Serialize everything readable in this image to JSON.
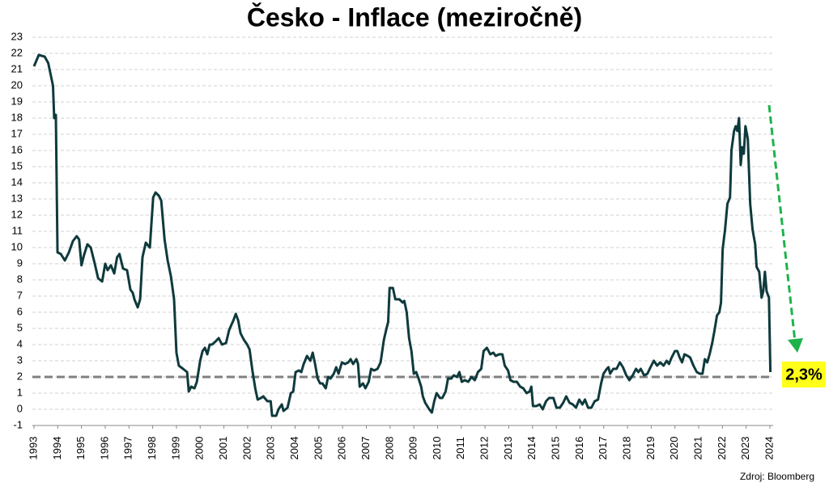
{
  "chart_data": {
    "type": "line",
    "title": "Česko - Inflace (meziročně)",
    "source": "Zdroj: Bloomberg",
    "annotation": "2,3%",
    "reference_line": 2,
    "xlim": [
      1993,
      2024
    ],
    "xticks": [
      1993,
      1994,
      1995,
      1996,
      1997,
      1998,
      1999,
      2000,
      2001,
      2002,
      2003,
      2004,
      2005,
      2006,
      2007,
      2008,
      2009,
      2010,
      2011,
      2012,
      2013,
      2014,
      2015,
      2016,
      2017,
      2018,
      2019,
      2020,
      2021,
      2022,
      2023,
      2024
    ],
    "ylim": [
      -1,
      23
    ],
    "yticks": [
      -1,
      0,
      1,
      2,
      3,
      4,
      5,
      6,
      7,
      8,
      9,
      10,
      11,
      12,
      13,
      14,
      15,
      16,
      17,
      18,
      19,
      20,
      21,
      22,
      23
    ],
    "grid": true,
    "x": [
      1993.0,
      1993.2,
      1993.45,
      1993.6,
      1993.8,
      1993.85,
      1993.92,
      1993.99,
      1994.13,
      1994.3,
      1994.47,
      1994.64,
      1994.8,
      1994.9,
      1995.0,
      1995.1,
      1995.25,
      1995.39,
      1995.56,
      1995.7,
      1995.87,
      1996.0,
      1996.1,
      1996.24,
      1996.38,
      1996.5,
      1996.6,
      1996.75,
      1996.92,
      1997.06,
      1997.16,
      1997.23,
      1997.37,
      1997.47,
      1997.57,
      1997.71,
      1997.88,
      1998.02,
      1998.12,
      1998.26,
      1998.36,
      1998.5,
      1998.63,
      1998.77,
      1998.9,
      1999.0,
      1999.1,
      1999.28,
      1999.45,
      1999.52,
      1999.62,
      1999.76,
      1999.86,
      2000.0,
      2000.1,
      2000.2,
      2000.3,
      2000.4,
      2000.5,
      2000.65,
      2000.78,
      2000.92,
      2001.09,
      2001.22,
      2001.4,
      2001.5,
      2001.6,
      2001.7,
      2001.84,
      2001.98,
      2002.08,
      2002.2,
      2002.32,
      2002.42,
      2002.56,
      2002.66,
      2002.83,
      2002.97,
      2003.03,
      2003.2,
      2003.3,
      2003.44,
      2003.51,
      2003.68,
      2003.82,
      2003.92,
      2004.02,
      2004.16,
      2004.26,
      2004.36,
      2004.5,
      2004.64,
      2004.74,
      2004.84,
      2004.95,
      2005.05,
      2005.15,
      2005.29,
      2005.39,
      2005.49,
      2005.63,
      2005.73,
      2005.83,
      2005.97,
      2006.1,
      2006.24,
      2006.34,
      2006.44,
      2006.58,
      2006.65,
      2006.72,
      2006.86,
      2006.96,
      2007.1,
      2007.2,
      2007.33,
      2007.47,
      2007.6,
      2007.74,
      2007.85,
      2007.92,
      2007.98,
      2008.12,
      2008.22,
      2008.39,
      2008.53,
      2008.6,
      2008.7,
      2008.8,
      2008.9,
      2009.0,
      2009.1,
      2009.2,
      2009.31,
      2009.38,
      2009.48,
      2009.65,
      2009.76,
      2009.86,
      2009.96,
      2010.1,
      2010.2,
      2010.34,
      2010.44,
      2010.58,
      2010.68,
      2010.82,
      2010.92,
      2011.02,
      2011.15,
      2011.29,
      2011.43,
      2011.57,
      2011.7,
      2011.84,
      2011.94,
      2012.08,
      2012.22,
      2012.35,
      2012.45,
      2012.59,
      2012.73,
      2012.83,
      2012.97,
      2013.07,
      2013.2,
      2013.34,
      2013.48,
      2013.61,
      2013.75,
      2013.88,
      2013.95,
      2014.02,
      2014.16,
      2014.3,
      2014.43,
      2014.57,
      2014.7,
      2014.88,
      2015.01,
      2015.15,
      2015.29,
      2015.42,
      2015.56,
      2015.7,
      2015.83,
      2015.97,
      2016.1,
      2016.21,
      2016.34,
      2016.48,
      2016.62,
      2016.76,
      2016.89,
      2016.99,
      2017.13,
      2017.2,
      2017.27,
      2017.4,
      2017.54,
      2017.68,
      2017.81,
      2017.95,
      2018.08,
      2018.22,
      2018.36,
      2018.46,
      2018.56,
      2018.7,
      2018.84,
      2018.97,
      2019.11,
      2019.25,
      2019.38,
      2019.52,
      2019.65,
      2019.75,
      2019.86,
      2020.0,
      2020.1,
      2020.2,
      2020.3,
      2020.4,
      2020.54,
      2020.64,
      2020.78,
      2020.92,
      2021.05,
      2021.16,
      2021.26,
      2021.36,
      2021.46,
      2021.57,
      2021.67,
      2021.77,
      2021.87,
      2021.94,
      2022.01,
      2022.11,
      2022.21,
      2022.32,
      2022.38,
      2022.49,
      2022.56,
      2022.63,
      2022.7,
      2022.77,
      2022.84,
      2022.9,
      2022.97,
      2023.07,
      2023.17,
      2023.27,
      2023.38,
      2023.44,
      2023.55,
      2023.65,
      2023.72,
      2023.79,
      2023.86,
      2023.96,
      2024.02
    ],
    "series": [
      {
        "name": "Inflace",
        "color": "#0f3a3c",
        "values": [
          21.2,
          21.9,
          21.8,
          21.4,
          20.0,
          18.0,
          18.2,
          9.7,
          9.6,
          9.2,
          9.7,
          10.4,
          10.7,
          10.5,
          8.9,
          9.5,
          10.2,
          10.0,
          9.0,
          8.1,
          7.9,
          9.0,
          8.6,
          8.9,
          8.4,
          9.4,
          9.6,
          8.7,
          8.6,
          7.4,
          7.2,
          6.8,
          6.3,
          6.8,
          9.4,
          10.3,
          10.0,
          13.1,
          13.4,
          13.2,
          12.9,
          10.5,
          9.2,
          8.2,
          6.8,
          3.5,
          2.7,
          2.5,
          2.3,
          1.1,
          1.4,
          1.3,
          1.7,
          3.0,
          3.6,
          3.8,
          3.4,
          4.0,
          4.0,
          4.2,
          4.4,
          4.0,
          4.1,
          4.9,
          5.5,
          5.9,
          5.5,
          4.7,
          4.3,
          4.0,
          3.7,
          2.4,
          1.3,
          0.6,
          0.7,
          0.8,
          0.5,
          0.5,
          -0.4,
          -0.4,
          0.0,
          0.3,
          -0.1,
          0.1,
          1.0,
          1.1,
          2.3,
          2.4,
          2.3,
          2.8,
          3.3,
          3.0,
          3.5,
          2.8,
          1.9,
          1.6,
          1.6,
          1.3,
          2.0,
          1.9,
          2.2,
          2.6,
          2.2,
          2.9,
          2.8,
          2.9,
          3.1,
          2.8,
          3.1,
          2.8,
          1.4,
          1.6,
          1.3,
          1.7,
          2.5,
          2.4,
          2.5,
          2.9,
          4.3,
          5.0,
          5.4,
          7.5,
          7.5,
          6.8,
          6.8,
          6.6,
          6.7,
          6.0,
          4.4,
          3.6,
          2.2,
          2.3,
          1.9,
          1.4,
          0.8,
          0.4,
          0.0,
          -0.2,
          0.5,
          1.0,
          0.7,
          0.7,
          1.1,
          1.9,
          1.9,
          2.1,
          2.0,
          2.3,
          1.7,
          1.8,
          1.7,
          2.0,
          1.8,
          2.3,
          2.5,
          3.6,
          3.8,
          3.4,
          3.5,
          3.3,
          3.4,
          3.4,
          2.7,
          2.4,
          1.8,
          1.7,
          1.7,
          1.4,
          1.3,
          1.0,
          1.1,
          1.4,
          0.2,
          0.2,
          0.3,
          0.0,
          0.5,
          0.7,
          0.7,
          0.1,
          0.1,
          0.4,
          0.8,
          0.4,
          0.3,
          0.1,
          0.6,
          0.3,
          0.6,
          0.1,
          0.1,
          0.5,
          0.6,
          1.6,
          2.2,
          2.5,
          2.6,
          2.2,
          2.5,
          2.5,
          2.9,
          2.6,
          2.1,
          1.8,
          2.1,
          2.5,
          2.3,
          2.5,
          2.1,
          2.2,
          2.6,
          3.0,
          2.7,
          2.9,
          2.7,
          3.0,
          2.8,
          3.2,
          3.6,
          3.6,
          3.2,
          2.9,
          3.4,
          3.3,
          3.2,
          2.7,
          2.3,
          2.2,
          2.2,
          3.1,
          2.9,
          3.4,
          4.1,
          4.9,
          5.8,
          6.0,
          6.6,
          9.9,
          11.1,
          12.7,
          13.1,
          16.0,
          17.2,
          17.5,
          17.2,
          18.0,
          15.1,
          16.2,
          15.8,
          17.5,
          16.7,
          12.7,
          11.1,
          10.2,
          8.8,
          8.5,
          6.9,
          7.3,
          8.5,
          7.3,
          6.9,
          2.3
        ]
      }
    ]
  }
}
